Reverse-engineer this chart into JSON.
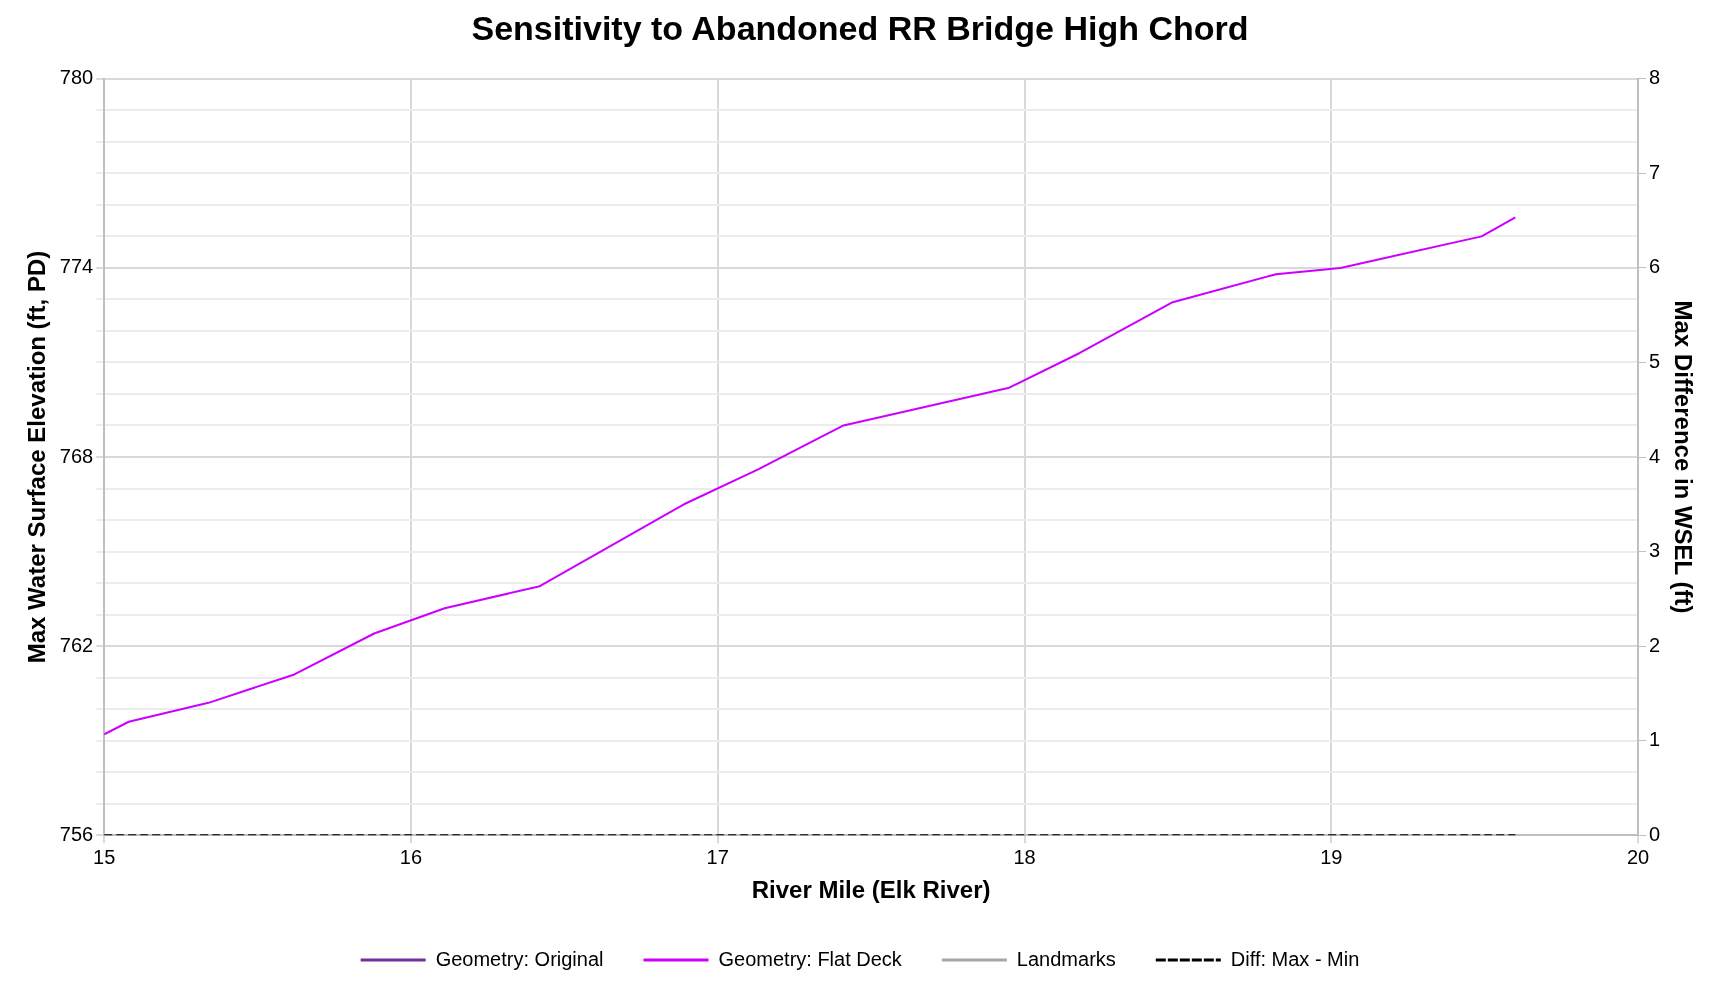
{
  "chart_data": {
    "type": "line",
    "title": "Sensitivity to Abandoned RR Bridge High Chord",
    "xlabel": "River Mile (Elk River)",
    "ylabel": "Max Water Surface Elevation (ft, PD)",
    "y2label": "Max Difference in WSEL (ft)",
    "xlim": [
      15,
      20
    ],
    "xticks": [
      15,
      16,
      17,
      18,
      19,
      20
    ],
    "ylim": [
      756,
      780
    ],
    "yticks": [
      756,
      {
        "value": 757,
        "label": null
      },
      {
        "value": 758,
        "label": null
      },
      {
        "value": 759,
        "label": null
      },
      {
        "value": 760,
        "label": null
      },
      {
        "value": 761,
        "label": null
      },
      762,
      {
        "value": 763,
        "label": null
      },
      {
        "value": 764,
        "label": null
      },
      {
        "value": 765,
        "label": null
      },
      {
        "value": 766,
        "label": null
      },
      {
        "value": 767,
        "label": null
      },
      768,
      {
        "value": 769,
        "label": null
      },
      {
        "value": 770,
        "label": null
      },
      {
        "value": 771,
        "label": null
      },
      {
        "value": 772,
        "label": null
      },
      {
        "value": 773,
        "label": null
      },
      774,
      {
        "value": 775,
        "label": null
      },
      {
        "value": 776,
        "label": null
      },
      {
        "value": 777,
        "label": null
      },
      {
        "value": 778,
        "label": null
      },
      {
        "value": 779,
        "label": null
      },
      780
    ],
    "y2lim": [
      0,
      8
    ],
    "y2ticks": [
      0,
      1,
      2,
      3,
      4,
      5,
      6,
      7,
      8
    ],
    "grid": true,
    "legend": "bottom",
    "marker": "none",
    "series": [
      {
        "name": "Geometry: Original",
        "color": "#7030a0"
      },
      {
        "name": "Geometry: Flat Deck",
        "color": "#cc00ff",
        "x": [
          15,
          15.08,
          15.34,
          15.62,
          15.88,
          16.11,
          16.42,
          16.89,
          17.13,
          17.41,
          17.95,
          18.18,
          18.48,
          18.82,
          19.03,
          19.49,
          19.6
        ],
        "values": [
          759.2,
          759.6,
          760.2,
          761.1,
          762.4,
          763.2,
          763.9,
          766.5,
          767.6,
          769.0,
          770.2,
          771.3,
          772.9,
          773.8,
          774.0,
          775.0,
          775.6
        ]
      },
      {
        "name": "Landmarks",
        "color": "#a6a6a6"
      },
      {
        "name": "Diff: Max - Min",
        "color": "#000000",
        "line_style": "dashed",
        "axis": "y2",
        "x": [
          15,
          19.6
        ],
        "values": [
          0,
          0
        ]
      }
    ]
  }
}
